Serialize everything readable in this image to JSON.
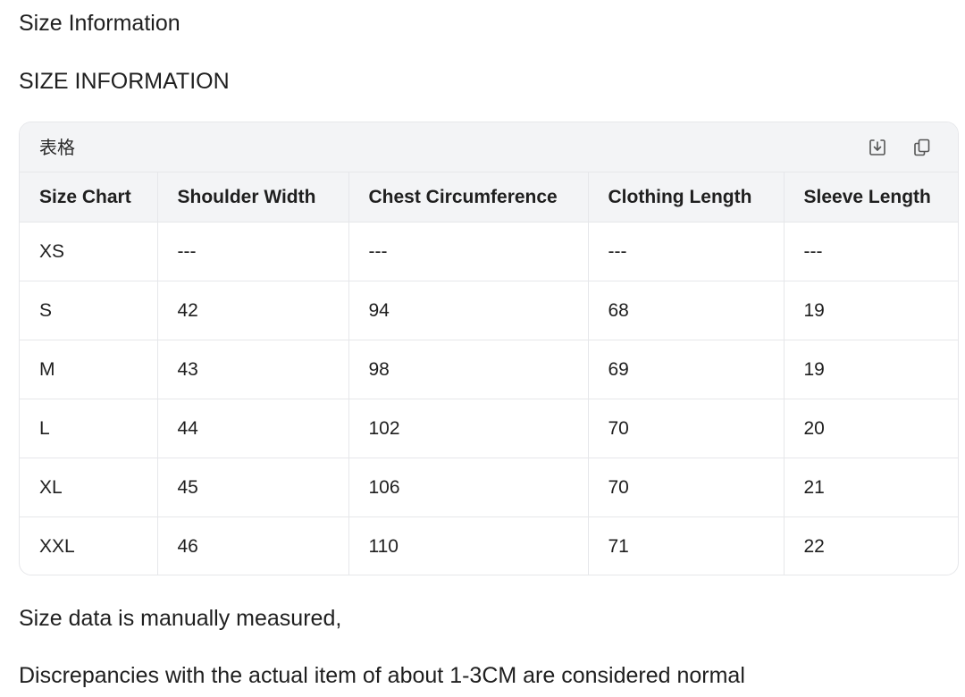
{
  "heading": "Size Information",
  "subheading": "SIZE INFORMATION",
  "table": {
    "label": "表格",
    "icons": {
      "download": "download-icon",
      "copy": "copy-icon"
    },
    "headers": [
      "Size Chart",
      "Shoulder Width",
      "Chest Circumference",
      "Clothing Length",
      "Sleeve Length"
    ],
    "rows": [
      [
        "XS",
        "---",
        "---",
        "---",
        "---"
      ],
      [
        "S",
        "42",
        "94",
        "68",
        "19"
      ],
      [
        "M",
        "43",
        "98",
        "69",
        "19"
      ],
      [
        "L",
        "44",
        "102",
        "70",
        "20"
      ],
      [
        "XL",
        "45",
        "106",
        "70",
        "21"
      ],
      [
        "XXL",
        "46",
        "110",
        "71",
        "22"
      ]
    ]
  },
  "notes": [
    "Size data is manually measured,",
    "Discrepancies with the actual item of about 1-3CM are considered normal"
  ]
}
